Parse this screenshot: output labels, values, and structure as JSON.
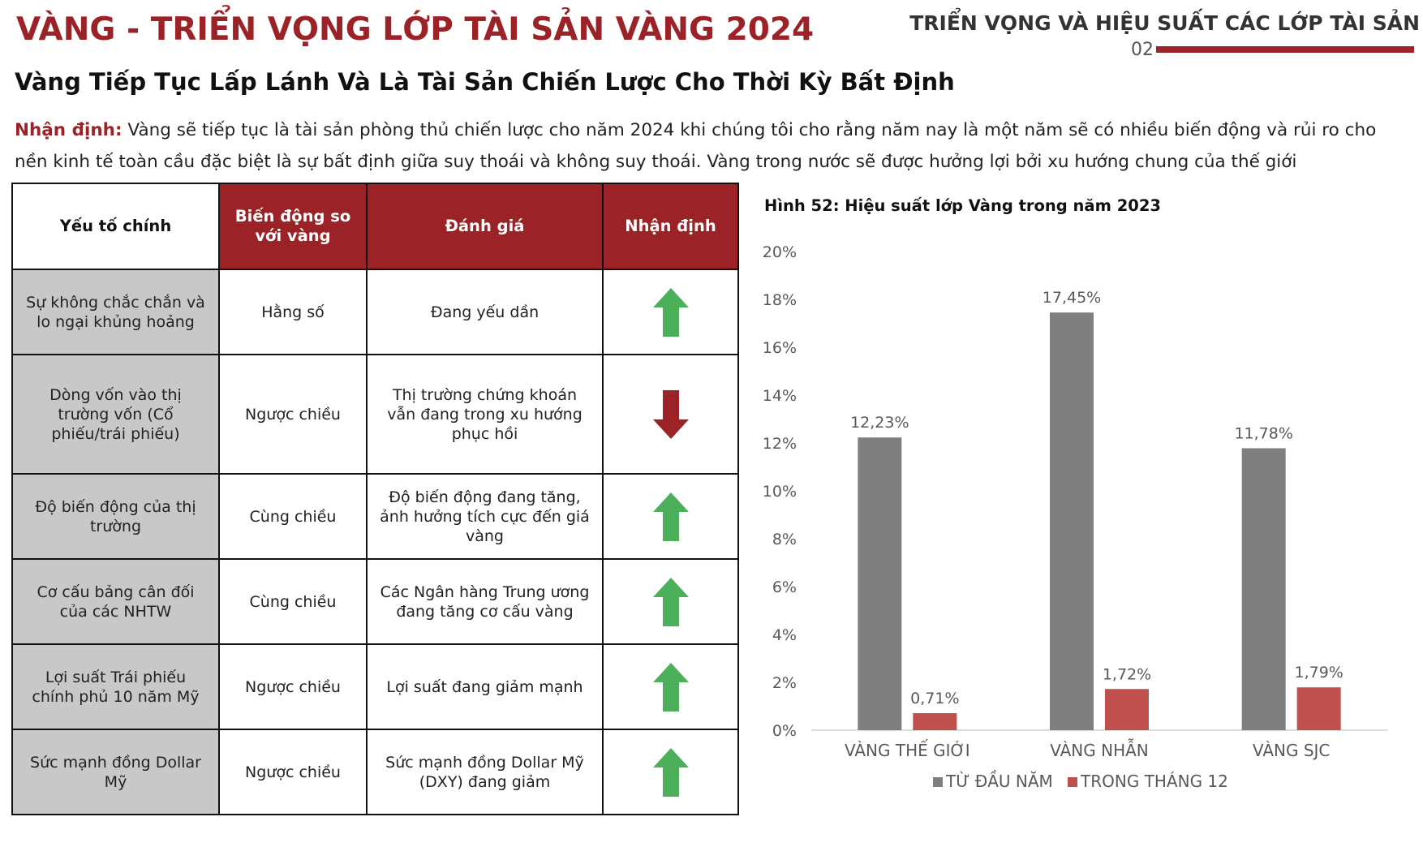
{
  "header": {
    "title": "VÀNG - TRIỂN VỌNG LỚP TÀI SẢN VÀNG 2024",
    "section": "TRIỂN VỌNG VÀ HIỆU SUẤT CÁC LỚP TÀI SẢN",
    "page_number": "02",
    "accent_color": "#9b2227"
  },
  "subtitle": "Vàng Tiếp Tục Lấp Lánh Và Là Tài Sản Chiến Lược Cho Thời Kỳ Bất Định",
  "intro": {
    "lead": "Nhận định:",
    "text": " Vàng sẽ tiếp tục là tài sản phòng thủ chiến lược cho năm 2024 khi chúng tôi cho rằng năm nay là một năm sẽ có nhiều biến động và rủi ro cho nền kinh tế toàn cầu đặc biệt là sự bất định giữa suy thoái và không suy thoái. Vàng trong nước sẽ được hưởng lợi bởi xu hướng chung của thế giới"
  },
  "table": {
    "headers": [
      "Yếu tố chính",
      "Biến động so với vàng",
      "Đánh giá",
      "Nhận định"
    ],
    "rows": [
      {
        "factor": "Sự không chắc chắn và lo ngại khủng hoảng",
        "relation": "Hằng số",
        "assessment": "Đang yếu dần",
        "outlook": "up"
      },
      {
        "factor": "Dòng vốn vào thị trường vốn (Cổ phiếu/trái phiếu)",
        "relation": "Ngược chiều",
        "assessment": "Thị trường chứng khoán vẫn đang trong xu hướng phục hồi",
        "outlook": "down"
      },
      {
        "factor": "Độ biến động của thị trường",
        "relation": "Cùng chiều",
        "assessment": "Độ biến động đang tăng, ảnh hưởng tích cực đến giá vàng",
        "outlook": "up"
      },
      {
        "factor": "Cơ cấu bảng cân đối của các NHTW",
        "relation": "Cùng chiều",
        "assessment": "Các Ngân hàng Trung ương đang tăng cơ cấu vàng",
        "outlook": "up"
      },
      {
        "factor": "Lợi suất Trái phiếu chính phủ 10 năm Mỹ",
        "relation": "Ngược chiều",
        "assessment": "Lợi suất đang giảm mạnh",
        "outlook": "up"
      },
      {
        "factor": "Sức mạnh đồng Dollar Mỹ",
        "relation": "Ngược chiều",
        "assessment": "Sức mạnh đồng Dollar Mỹ (DXY) đang giảm",
        "outlook": "up"
      }
    ],
    "colors": {
      "up": "#4caf5a",
      "down": "#9b2227",
      "factor_bg": "#c8c8c8"
    }
  },
  "figure_caption": "Hình 52: Hiệu suất lớp Vàng trong năm 2023",
  "chart_data": {
    "type": "bar",
    "title": "",
    "xlabel": "",
    "ylabel": "",
    "categories": [
      "VÀNG THẾ GIỚI",
      "VÀNG NHẪN",
      "VÀNG SJC"
    ],
    "series": [
      {
        "name": "TỪ ĐẦU NĂM",
        "values": [
          12.23,
          17.45,
          11.78
        ],
        "labels": [
          "12,23%",
          "17,45%",
          "11,78%"
        ],
        "color": "#7f7f7f"
      },
      {
        "name": "TRONG THÁNG 12",
        "values": [
          0.71,
          1.72,
          1.79
        ],
        "labels": [
          "0,71%",
          "1,72%",
          "1,79%"
        ],
        "color": "#c0504d"
      }
    ],
    "ylim": [
      0,
      20
    ],
    "yticks": [
      0,
      2,
      4,
      6,
      8,
      10,
      12,
      14,
      16,
      18,
      20
    ],
    "ytick_labels": [
      "0%",
      "2%",
      "4%",
      "6%",
      "8%",
      "10%",
      "12%",
      "14%",
      "16%",
      "18%",
      "20%"
    ],
    "grid": false,
    "legend_position": "bottom"
  }
}
